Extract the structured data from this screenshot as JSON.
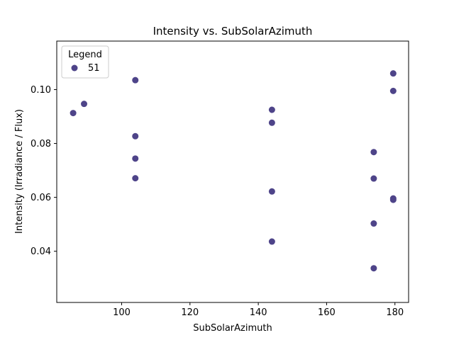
{
  "chart_data": {
    "type": "scatter",
    "title": "Intensity vs. SubSolarAzimuth",
    "xlabel": "SubSolarAzimuth",
    "ylabel": "Intensity (Irradiance / Flux)",
    "xlim": [
      81,
      184
    ],
    "ylim": [
      0.021,
      0.118
    ],
    "xticks": [
      100,
      120,
      140,
      160,
      180
    ],
    "yticks": [
      0.04,
      0.06,
      0.08,
      0.1
    ],
    "xtick_labels": [
      "100",
      "120",
      "140",
      "160",
      "180"
    ],
    "ytick_labels": [
      "0.04",
      "0.06",
      "0.08",
      "0.10"
    ],
    "grid": false,
    "legend": {
      "title": "Legend",
      "placement": "top-left",
      "entries": [
        "51"
      ]
    },
    "series": [
      {
        "name": "51",
        "color": "#4e4489",
        "points": [
          {
            "x": 85.8,
            "y": 0.0913
          },
          {
            "x": 89.0,
            "y": 0.0947
          },
          {
            "x": 104.0,
            "y": 0.1035
          },
          {
            "x": 104.0,
            "y": 0.0827
          },
          {
            "x": 104.0,
            "y": 0.0744
          },
          {
            "x": 104.0,
            "y": 0.0671
          },
          {
            "x": 144.0,
            "y": 0.0925
          },
          {
            "x": 144.0,
            "y": 0.0877
          },
          {
            "x": 144.0,
            "y": 0.0622
          },
          {
            "x": 144.0,
            "y": 0.0436
          },
          {
            "x": 173.8,
            "y": 0.0768
          },
          {
            "x": 173.8,
            "y": 0.067
          },
          {
            "x": 173.8,
            "y": 0.0503
          },
          {
            "x": 173.8,
            "y": 0.0337
          },
          {
            "x": 179.5,
            "y": 0.106
          },
          {
            "x": 179.5,
            "y": 0.0995
          },
          {
            "x": 179.5,
            "y": 0.0596
          },
          {
            "x": 179.5,
            "y": 0.0591
          }
        ]
      }
    ]
  }
}
